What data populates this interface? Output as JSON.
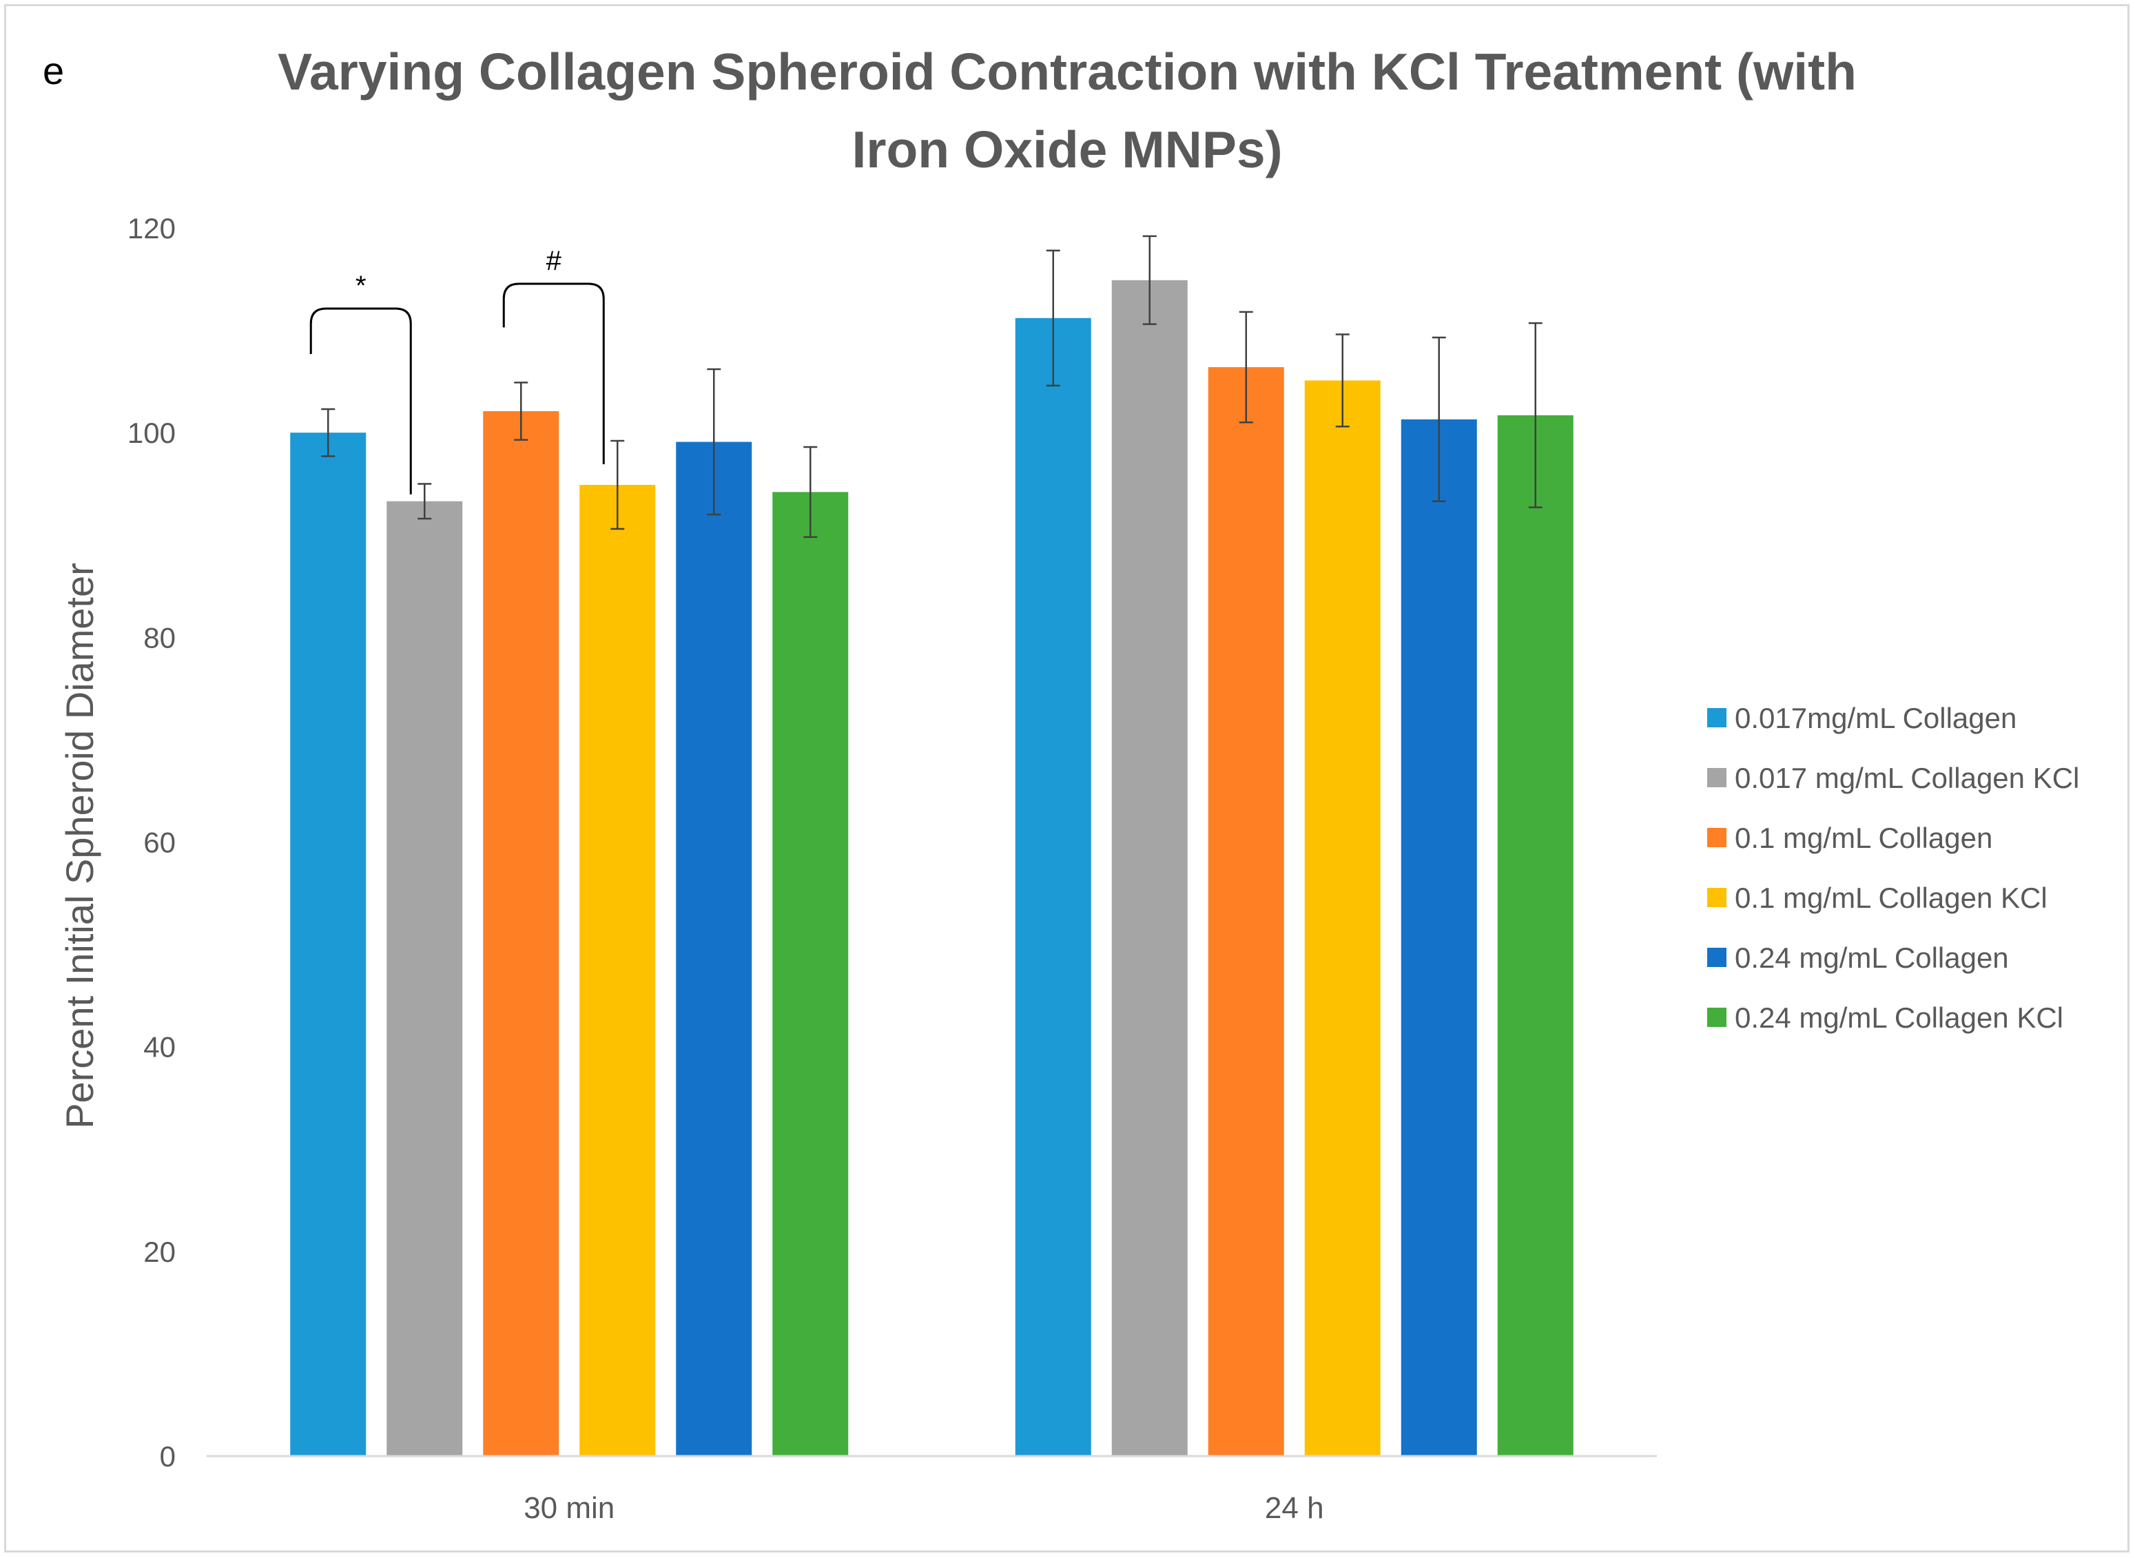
{
  "panel_label": "e",
  "chart_data": {
    "type": "bar",
    "title_lines": [
      "Varying Collagen Spheroid Contraction with KCl Treatment (with",
      "Iron Oxide MNPs)"
    ],
    "xlabel": "",
    "ylabel": "Percent Initial Spheroid Diameter",
    "ylim": [
      0,
      120
    ],
    "yticks": [
      "0",
      "20",
      "40",
      "60",
      "80",
      "100",
      "120"
    ],
    "categories": [
      "30 min",
      "24 h"
    ],
    "grid": false,
    "legend_position": "right",
    "series": [
      {
        "name": "0.017mg/mL Collagen",
        "color": "#1b9ad6",
        "values": [
          100.0,
          111.2
        ],
        "errors": [
          2.3,
          6.6
        ]
      },
      {
        "name": "0.017 mg/mL Collagen KCl",
        "color": "#a5a5a5",
        "values": [
          93.3,
          114.9
        ],
        "errors": [
          1.7,
          4.3
        ]
      },
      {
        "name": "0.1 mg/mL Collagen",
        "color": "#fe7f24",
        "values": [
          102.1,
          106.4
        ],
        "errors": [
          2.8,
          5.4
        ]
      },
      {
        "name": "0.1 mg/mL Collagen KCl",
        "color": "#fec100",
        "values": [
          94.9,
          105.1
        ],
        "errors": [
          4.3,
          4.5
        ]
      },
      {
        "name": "0.24 mg/mL Collagen",
        "color": "#1473c9",
        "values": [
          99.1,
          101.3
        ],
        "errors": [
          7.1,
          8.0
        ]
      },
      {
        "name": "0.24 mg/mL Collagen KCl",
        "color": "#43ae3b",
        "values": [
          94.2,
          101.7
        ],
        "errors": [
          4.4,
          9.0
        ]
      }
    ],
    "annotations": [
      {
        "text": "*",
        "category": "30 min",
        "from_series": 0,
        "to_series": 1
      },
      {
        "text": "#",
        "category": "30 min",
        "from_series": 2,
        "to_series": 3
      }
    ]
  }
}
